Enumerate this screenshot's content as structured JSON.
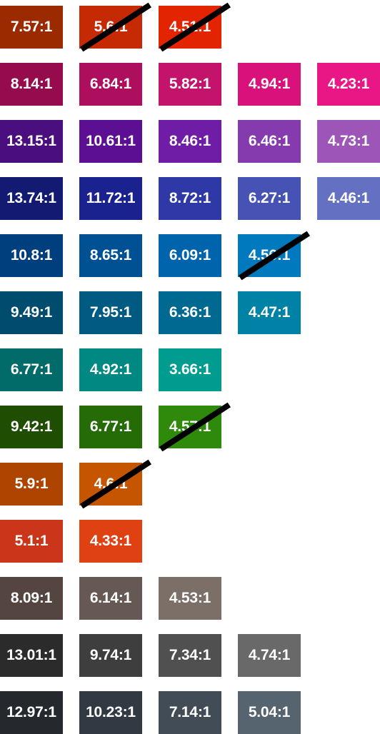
{
  "rows": [
    {
      "swatches": [
        {
          "ratio": "7.57:1",
          "color": "#9c2a00",
          "struck": false
        },
        {
          "ratio": "5.6:1",
          "color": "#c52a05",
          "struck": true
        },
        {
          "ratio": "4.51:1",
          "color": "#e22400",
          "struck": true
        }
      ]
    },
    {
      "swatches": [
        {
          "ratio": "8.14:1",
          "color": "#960b4d",
          "struck": false
        },
        {
          "ratio": "6.84:1",
          "color": "#ae0e5e",
          "struck": false
        },
        {
          "ratio": "5.82:1",
          "color": "#c3136b",
          "struck": false
        },
        {
          "ratio": "4.94:1",
          "color": "#d8127a",
          "struck": false
        },
        {
          "ratio": "4.23:1",
          "color": "#e91685",
          "struck": false
        }
      ]
    },
    {
      "swatches": [
        {
          "ratio": "13.15:1",
          "color": "#4b0e7e",
          "struck": false
        },
        {
          "ratio": "10.61:1",
          "color": "#5c0f93",
          "struck": false
        },
        {
          "ratio": "8.46:1",
          "color": "#6f1ca6",
          "struck": false
        },
        {
          "ratio": "6.46:1",
          "color": "#853aae",
          "struck": false
        },
        {
          "ratio": "4.73:1",
          "color": "#9d55b7",
          "struck": false
        }
      ]
    },
    {
      "swatches": [
        {
          "ratio": "13.74:1",
          "color": "#121a72",
          "struck": false
        },
        {
          "ratio": "11.72:1",
          "color": "#1a228f",
          "struck": false
        },
        {
          "ratio": "8.72:1",
          "color": "#2e38a6",
          "struck": false
        },
        {
          "ratio": "6.27:1",
          "color": "#4752b5",
          "struck": false
        },
        {
          "ratio": "4.46:1",
          "color": "#6470c2",
          "struck": false
        }
      ]
    },
    {
      "swatches": [
        {
          "ratio": "10.8:1",
          "color": "#003f7e",
          "struck": false
        },
        {
          "ratio": "8.65:1",
          "color": "#005193",
          "struck": false
        },
        {
          "ratio": "6.09:1",
          "color": "#0064ac",
          "struck": false
        },
        {
          "ratio": "4.56:1",
          "color": "#0079bf",
          "struck": true
        }
      ]
    },
    {
      "swatches": [
        {
          "ratio": "9.49:1",
          "color": "#004c6f",
          "struck": false
        },
        {
          "ratio": "7.95:1",
          "color": "#005a82",
          "struck": false
        },
        {
          "ratio": "6.36:1",
          "color": "#006992",
          "struck": false
        },
        {
          "ratio": "4.47:1",
          "color": "#0082a6",
          "struck": false
        }
      ]
    },
    {
      "swatches": [
        {
          "ratio": "6.77:1",
          "color": "#006b68",
          "struck": false
        },
        {
          "ratio": "4.92:1",
          "color": "#008882",
          "struck": false
        },
        {
          "ratio": "3.66:1",
          "color": "#009c8f",
          "struck": false
        }
      ]
    },
    {
      "swatches": [
        {
          "ratio": "9.42:1",
          "color": "#1f4e03",
          "struck": false
        },
        {
          "ratio": "6.77:1",
          "color": "#256b06",
          "struck": false
        },
        {
          "ratio": "4.57:1",
          "color": "#2f8a0c",
          "struck": true
        }
      ]
    },
    {
      "swatches": [
        {
          "ratio": "5.9:1",
          "color": "#ad4400",
          "struck": false
        },
        {
          "ratio": "4.6:1",
          "color": "#c65500",
          "struck": true
        }
      ]
    },
    {
      "swatches": [
        {
          "ratio": "5.1:1",
          "color": "#cb3519",
          "struck": false
        },
        {
          "ratio": "4.33:1",
          "color": "#df4112",
          "struck": false
        }
      ]
    },
    {
      "swatches": [
        {
          "ratio": "8.09:1",
          "color": "#544541",
          "struck": false
        },
        {
          "ratio": "6.14:1",
          "color": "#665954",
          "struck": false
        },
        {
          "ratio": "4.53:1",
          "color": "#7c6f67",
          "struck": false
        }
      ]
    },
    {
      "swatches": [
        {
          "ratio": "13.01:1",
          "color": "#2b2b2b",
          "struck": false
        },
        {
          "ratio": "9.74:1",
          "color": "#3e3e3e",
          "struck": false
        },
        {
          "ratio": "7.34:1",
          "color": "#505050",
          "struck": false
        },
        {
          "ratio": "4.74:1",
          "color": "#696969",
          "struck": false
        }
      ]
    },
    {
      "swatches": [
        {
          "ratio": "12.97:1",
          "color": "#25292d",
          "struck": false
        },
        {
          "ratio": "10.23:1",
          "color": "#313a42",
          "struck": false
        },
        {
          "ratio": "7.14:1",
          "color": "#414c56",
          "struck": false
        },
        {
          "ratio": "5.04:1",
          "color": "#566470",
          "struck": false
        }
      ]
    }
  ]
}
